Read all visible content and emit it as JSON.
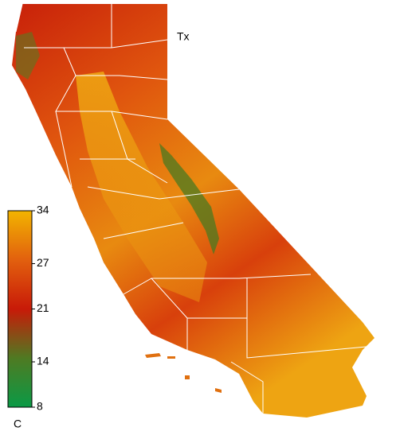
{
  "title": "Tx",
  "colorbar": {
    "range": [
      8,
      34
    ],
    "ticks": [
      34,
      27,
      21,
      14,
      8
    ],
    "unit": "C",
    "colors": [
      "#0a9a46",
      "#4f7a22",
      "#c81a08",
      "#e2600e",
      "#f2b400"
    ]
  }
}
